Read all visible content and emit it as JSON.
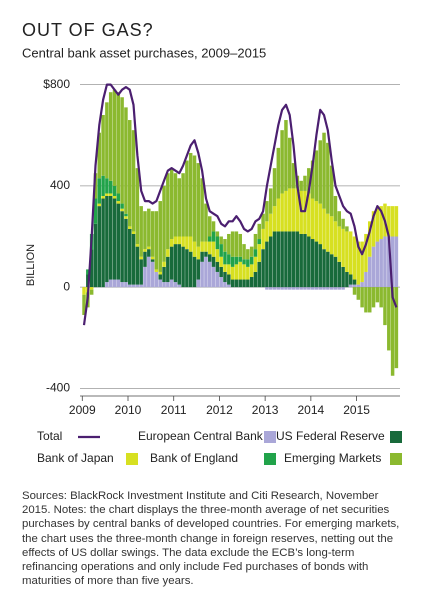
{
  "chart_data": {
    "type": "bar",
    "title": "OUT OF GAS?",
    "subtitle": "Central bank asset purchases, 2009–2015",
    "y_label": "BILLION",
    "stacked": true,
    "x": [
      2009.0,
      2009.083,
      2009.167,
      2009.25,
      2009.333,
      2009.417,
      2009.5,
      2009.583,
      2009.667,
      2009.75,
      2009.833,
      2009.917,
      2010.0,
      2010.083,
      2010.167,
      2010.25,
      2010.333,
      2010.417,
      2010.5,
      2010.583,
      2010.667,
      2010.75,
      2010.833,
      2010.917,
      2011.0,
      2011.083,
      2011.167,
      2011.25,
      2011.333,
      2011.417,
      2011.5,
      2011.583,
      2011.667,
      2011.75,
      2011.833,
      2011.917,
      2012.0,
      2012.083,
      2012.167,
      2012.25,
      2012.333,
      2012.417,
      2012.5,
      2012.583,
      2012.667,
      2012.75,
      2012.833,
      2012.917,
      2013.0,
      2013.083,
      2013.167,
      2013.25,
      2013.333,
      2013.417,
      2013.5,
      2013.583,
      2013.667,
      2013.75,
      2013.833,
      2013.917,
      2014.0,
      2014.083,
      2014.167,
      2014.25,
      2014.333,
      2014.417,
      2014.5,
      2014.583,
      2014.667,
      2014.75,
      2014.833,
      2014.917,
      2015.0,
      2015.083,
      2015.167,
      2015.25,
      2015.333,
      2015.417,
      2015.5,
      2015.583,
      2015.667,
      2015.75,
      2015.833
    ],
    "xlim": [
      2008.95,
      2015.95
    ],
    "xticks": [
      2009,
      2010,
      2011,
      2012,
      2013,
      2014,
      2015
    ],
    "ylim": [
      -430,
      830
    ],
    "yticks": [
      -400,
      0,
      400,
      {
        "value": 800,
        "label": "$800"
      }
    ],
    "grid": true,
    "series": [
      {
        "name": "European Central Bank",
        "color": "#aaa7d8",
        "values": [
          0,
          0,
          0,
          0,
          0,
          0,
          20,
          30,
          30,
          30,
          20,
          20,
          10,
          10,
          10,
          10,
          80,
          120,
          100,
          60,
          30,
          20,
          20,
          30,
          20,
          10,
          0,
          0,
          0,
          0,
          30,
          100,
          120,
          100,
          80,
          60,
          40,
          20,
          10,
          0,
          0,
          0,
          0,
          0,
          0,
          0,
          0,
          0,
          -10,
          -10,
          -10,
          -10,
          -10,
          -10,
          -10,
          -10,
          -10,
          -10,
          -10,
          -10,
          -10,
          -10,
          -10,
          -10,
          -10,
          -10,
          -10,
          -10,
          -10,
          0,
          10,
          10,
          10,
          20,
          60,
          120,
          160,
          180,
          190,
          200,
          200,
          200,
          200
        ]
      },
      {
        "name": "US Federal Reserve",
        "color": "#186a3b",
        "values": [
          0,
          50,
          150,
          250,
          320,
          350,
          340,
          330,
          320,
          300,
          280,
          250,
          220,
          200,
          150,
          100,
          60,
          30,
          10,
          0,
          20,
          60,
          100,
          130,
          150,
          160,
          160,
          150,
          140,
          120,
          80,
          40,
          20,
          30,
          40,
          40,
          40,
          40,
          40,
          30,
          30,
          30,
          30,
          30,
          40,
          60,
          100,
          150,
          180,
          200,
          220,
          220,
          220,
          220,
          220,
          220,
          220,
          210,
          210,
          200,
          190,
          180,
          170,
          150,
          140,
          130,
          120,
          100,
          80,
          60,
          40,
          20,
          0,
          0,
          0,
          0,
          0,
          0,
          0,
          0,
          0,
          0,
          0
        ]
      },
      {
        "name": "Bank of Japan",
        "color": "#d7e021",
        "values": [
          -30,
          -20,
          -10,
          0,
          10,
          10,
          10,
          10,
          10,
          10,
          10,
          10,
          10,
          10,
          10,
          10,
          10,
          10,
          10,
          10,
          10,
          20,
          30,
          30,
          30,
          30,
          40,
          50,
          60,
          60,
          50,
          40,
          40,
          50,
          60,
          50,
          40,
          30,
          40,
          50,
          60,
          70,
          60,
          50,
          50,
          60,
          70,
          80,
          80,
          90,
          100,
          130,
          150,
          160,
          170,
          170,
          170,
          170,
          170,
          170,
          160,
          160,
          160,
          160,
          150,
          150,
          140,
          140,
          150,
          160,
          170,
          170,
          170,
          160,
          150,
          140,
          140,
          130,
          130,
          130,
          120,
          120,
          120
        ]
      },
      {
        "name": "Bank of England",
        "color": "#21a34a",
        "values": [
          0,
          20,
          60,
          100,
          100,
          80,
          60,
          50,
          40,
          30,
          20,
          10,
          0,
          0,
          0,
          0,
          0,
          0,
          0,
          0,
          0,
          0,
          0,
          0,
          0,
          0,
          0,
          0,
          0,
          0,
          0,
          0,
          0,
          20,
          40,
          50,
          50,
          50,
          40,
          40,
          30,
          20,
          20,
          30,
          30,
          30,
          20,
          0,
          0,
          0,
          0,
          0,
          0,
          0,
          0,
          0,
          0,
          0,
          0,
          0,
          0,
          0,
          0,
          0,
          0,
          0,
          0,
          0,
          0,
          0,
          0,
          0,
          0,
          0,
          0,
          0,
          0,
          0,
          0,
          0,
          0,
          0,
          0
        ]
      },
      {
        "name": "Emerging Markets",
        "color": "#8bb92f",
        "values": [
          -80,
          -60,
          -20,
          100,
          180,
          240,
          300,
          350,
          380,
          400,
          420,
          420,
          420,
          400,
          300,
          200,
          150,
          150,
          180,
          230,
          280,
          300,
          300,
          280,
          250,
          230,
          250,
          300,
          330,
          340,
          330,
          250,
          150,
          80,
          40,
          20,
          30,
          50,
          80,
          100,
          100,
          90,
          60,
          40,
          40,
          60,
          60,
          60,
          80,
          100,
          150,
          200,
          250,
          280,
          200,
          100,
          50,
          40,
          60,
          100,
          150,
          200,
          250,
          300,
          280,
          200,
          100,
          60,
          40,
          20,
          0,
          -30,
          -50,
          -80,
          -100,
          -100,
          -80,
          -60,
          -80,
          -150,
          -250,
          -350,
          -320
        ]
      }
    ],
    "total": {
      "name": "Total",
      "color": "#4b1f70",
      "values": [
        -150,
        -40,
        200,
        480,
        640,
        740,
        800,
        800,
        780,
        760,
        780,
        790,
        780,
        720,
        520,
        380,
        340,
        340,
        330,
        340,
        380,
        420,
        460,
        470,
        460,
        450,
        480,
        520,
        560,
        580,
        530,
        460,
        350,
        300,
        290,
        280,
        250,
        240,
        260,
        260,
        280,
        260,
        230,
        220,
        230,
        260,
        270,
        300,
        400,
        480,
        560,
        640,
        700,
        720,
        680,
        560,
        400,
        300,
        300,
        380,
        480,
        600,
        700,
        680,
        620,
        500,
        400,
        360,
        320,
        300,
        290,
        240,
        160,
        130,
        170,
        220,
        280,
        320,
        300,
        260,
        200,
        -40,
        -80
      ]
    },
    "note": "Sources: BlackRock Investment Institute and Citi Research, November 2015. Notes: the chart displays the three-month average of net securities purchases by central banks of developed countries. For emerging markets, the chart uses the three-month change in foreign reserves, netting out the effects of US dollar swings. The data exclude the ECB’s long-term refinancing operations and only include Fed purchases of bonds with maturities of more than five years."
  }
}
